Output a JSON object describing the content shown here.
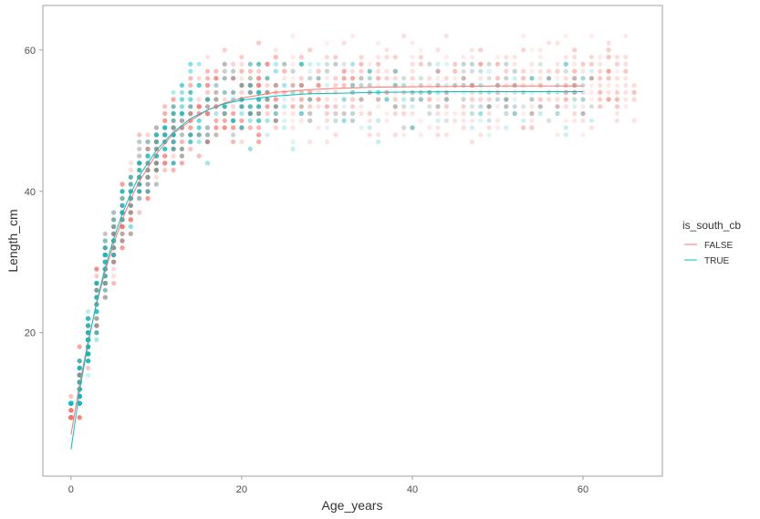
{
  "chart_data": {
    "type": "scatter",
    "title": "",
    "xlabel": "Age_years",
    "ylabel": "Length_cm",
    "xlim": [
      -3.3,
      69.3
    ],
    "ylim": [
      -0.3,
      66.3
    ],
    "xticks": [
      0,
      20,
      40,
      60
    ],
    "yticks": [
      20,
      40,
      60
    ],
    "grid": false,
    "legend": {
      "title": "is_south_cb",
      "position": "right",
      "entries": [
        "FALSE",
        "TRUE"
      ]
    },
    "colors": {
      "FALSE": "#F8766D",
      "TRUE": "#00BFC4",
      "panel_border": "#a0a0a0"
    },
    "series": [
      {
        "name": "FALSE",
        "fit_curve": {
          "x": [
            0,
            1,
            2,
            3,
            4,
            5,
            6,
            7,
            8,
            10,
            12,
            14,
            16,
            18,
            20,
            24,
            28,
            32,
            36,
            40,
            45,
            50,
            55,
            60
          ],
          "y": [
            5.6,
            12.7,
            18.8,
            24.1,
            28.7,
            32.6,
            36.0,
            38.9,
            41.4,
            45.3,
            48.2,
            50.0,
            51.5,
            52.5,
            53.2,
            54.0,
            54.4,
            54.6,
            54.75,
            54.8,
            54.85,
            54.9,
            54.9,
            54.9
          ]
        },
        "points_summary": {
          "x_range": [
            0,
            66
          ],
          "y_range": [
            8,
            62
          ]
        }
      },
      {
        "name": "TRUE",
        "fit_curve": {
          "x": [
            0,
            1,
            2,
            3,
            4,
            5,
            6,
            7,
            8,
            10,
            12,
            14,
            16,
            18,
            20,
            24,
            28,
            32,
            36,
            40,
            45,
            50,
            55,
            60
          ],
          "y": [
            3.5,
            11.8,
            18.5,
            24.3,
            29.2,
            33.3,
            36.8,
            39.7,
            42.2,
            45.8,
            48.4,
            50.3,
            51.5,
            52.4,
            52.9,
            53.5,
            53.8,
            53.9,
            54.0,
            54.05,
            54.1,
            54.1,
            54.1,
            54.1
          ]
        },
        "points_summary": {
          "x_range": [
            0,
            61
          ],
          "y_range": [
            10,
            58
          ]
        }
      }
    ]
  }
}
